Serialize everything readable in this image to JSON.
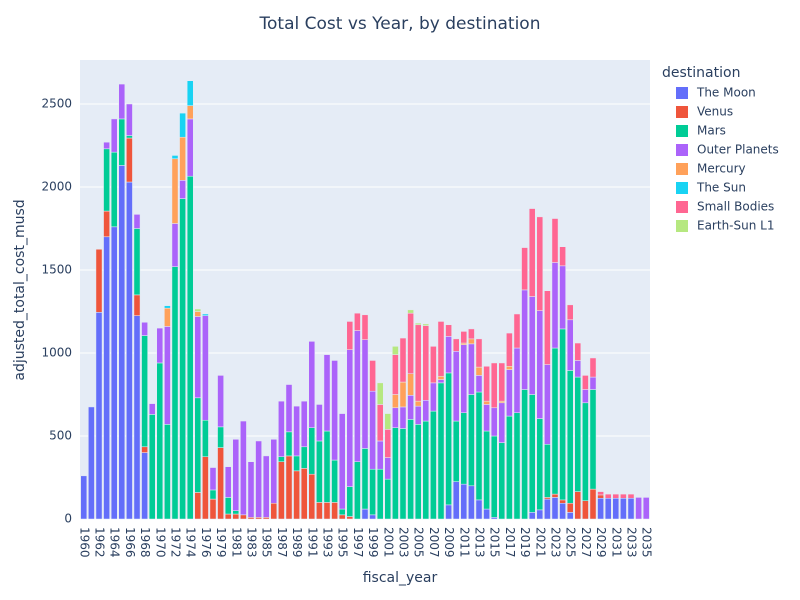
{
  "chart_data": {
    "type": "stacked_bar",
    "title": "Total Cost vs Year, by destination",
    "x_label": "fiscal_year",
    "y_label": "adjusted_total_cost_musd",
    "legend_title": "destination",
    "categories": [
      "1960",
      null,
      "1962",
      null,
      "1964",
      null,
      "1966",
      null,
      "1968",
      null,
      "1970",
      null,
      "1972",
      null,
      "1974",
      null,
      "1976",
      null,
      "1979",
      null,
      "1981",
      null,
      "1983",
      null,
      "1985",
      null,
      "1987",
      null,
      "1989",
      null,
      "1991",
      null,
      "1993",
      null,
      "1995",
      null,
      "1997",
      null,
      "1999",
      null,
      "2001",
      null,
      "2003",
      null,
      "2005",
      null,
      "2007",
      null,
      "2009",
      null,
      "2011",
      null,
      "2013",
      null,
      "2015",
      null,
      "2017",
      null,
      "2019",
      null,
      "2021",
      null,
      "2023",
      null,
      "2025",
      null,
      "2027",
      null,
      "2029",
      null,
      "2031",
      null,
      "2033",
      null,
      "2035"
    ],
    "ylim": [
      0,
      2765
    ],
    "yticks": [
      0,
      500,
      1000,
      1500,
      2000,
      2500
    ],
    "grid": true,
    "legend": "right",
    "series": [
      {
        "name": "The Moon",
        "color": "#636efa",
        "values": [
          260,
          675,
          1245,
          1700,
          1760,
          2130,
          2030,
          1225,
          400,
          0,
          0,
          0,
          0,
          0,
          0,
          0,
          0,
          0,
          0,
          0,
          0,
          0,
          0,
          0,
          0,
          0,
          0,
          0,
          0,
          0,
          0,
          0,
          0,
          0,
          0,
          0,
          0,
          60,
          25,
          0,
          0,
          0,
          0,
          0,
          0,
          0,
          0,
          0,
          85,
          225,
          210,
          200,
          115,
          60,
          10,
          0,
          0,
          0,
          0,
          40,
          55,
          120,
          130,
          95,
          40,
          0,
          0,
          0,
          125,
          125,
          125,
          125,
          125,
          0,
          0
        ]
      },
      {
        "name": "Venus",
        "color": "#EF553B",
        "values": [
          0,
          0,
          380,
          155,
          0,
          0,
          265,
          125,
          35,
          0,
          0,
          0,
          0,
          0,
          0,
          160,
          375,
          120,
          430,
          30,
          30,
          25,
          10,
          10,
          10,
          95,
          345,
          380,
          290,
          305,
          270,
          100,
          100,
          100,
          25,
          15,
          0,
          0,
          0,
          0,
          0,
          0,
          0,
          0,
          0,
          0,
          0,
          0,
          0,
          0,
          0,
          0,
          0,
          0,
          0,
          0,
          0,
          0,
          0,
          0,
          0,
          10,
          20,
          20,
          55,
          165,
          110,
          180,
          20,
          0,
          0,
          0,
          0,
          0,
          0
        ]
      },
      {
        "name": "Mars",
        "color": "#00cc96",
        "values": [
          0,
          0,
          0,
          375,
          450,
          280,
          15,
          400,
          670,
          630,
          940,
          570,
          1520,
          1930,
          2065,
          570,
          220,
          55,
          125,
          100,
          20,
          0,
          0,
          0,
          0,
          0,
          30,
          145,
          90,
          130,
          280,
          370,
          430,
          255,
          35,
          180,
          345,
          365,
          275,
          300,
          240,
          550,
          545,
          600,
          570,
          590,
          650,
          820,
          795,
          365,
          430,
          550,
          650,
          470,
          490,
          460,
          620,
          640,
          780,
          710,
          550,
          320,
          880,
          1030,
          800,
          690,
          590,
          600,
          0,
          0,
          0,
          0,
          0,
          0,
          0
        ]
      },
      {
        "name": "Outer Planets",
        "color": "#ab63fa",
        "values": [
          0,
          0,
          0,
          40,
          200,
          210,
          190,
          85,
          80,
          65,
          210,
          590,
          260,
          110,
          345,
          490,
          630,
          135,
          310,
          185,
          430,
          565,
          335,
          460,
          370,
          385,
          335,
          285,
          300,
          275,
          520,
          220,
          460,
          600,
          575,
          825,
          790,
          655,
          470,
          170,
          130,
          120,
          130,
          145,
          110,
          125,
          170,
          20,
          220,
          420,
          410,
          305,
          100,
          160,
          170,
          240,
          280,
          390,
          600,
          590,
          650,
          480,
          515,
          380,
          305,
          100,
          80,
          75,
          0,
          0,
          0,
          0,
          0,
          130,
          130
        ]
      },
      {
        "name": "Mercury",
        "color": "#FFA15A",
        "values": [
          0,
          0,
          0,
          0,
          0,
          0,
          0,
          0,
          0,
          0,
          0,
          110,
          390,
          260,
          80,
          30,
          0,
          0,
          0,
          0,
          0,
          0,
          0,
          0,
          0,
          0,
          0,
          0,
          0,
          0,
          0,
          0,
          0,
          0,
          0,
          0,
          0,
          0,
          0,
          0,
          0,
          80,
          150,
          130,
          30,
          0,
          0,
          20,
          0,
          0,
          10,
          30,
          50,
          20,
          0,
          10,
          20,
          0,
          0,
          0,
          0,
          0,
          0,
          0,
          0,
          0,
          0,
          0,
          0,
          0,
          0,
          0,
          0,
          0,
          0
        ]
      },
      {
        "name": "The Sun",
        "color": "#19d3f3",
        "values": [
          0,
          0,
          0,
          0,
          0,
          0,
          0,
          0,
          0,
          0,
          0,
          15,
          20,
          145,
          150,
          0,
          10,
          0,
          0,
          0,
          0,
          0,
          0,
          0,
          0,
          0,
          0,
          0,
          0,
          0,
          0,
          0,
          0,
          0,
          0,
          0,
          0,
          0,
          0,
          0,
          0,
          0,
          0,
          0,
          0,
          0,
          0,
          0,
          0,
          0,
          0,
          0,
          0,
          0,
          0,
          0,
          0,
          0,
          0,
          0,
          0,
          0,
          0,
          0,
          0,
          0,
          0,
          0,
          0,
          0,
          0,
          0,
          0,
          0,
          0
        ]
      },
      {
        "name": "Small Bodies",
        "color": "#FF6692",
        "values": [
          0,
          0,
          0,
          0,
          0,
          0,
          0,
          0,
          0,
          0,
          0,
          0,
          0,
          0,
          0,
          0,
          0,
          0,
          0,
          0,
          0,
          0,
          0,
          0,
          0,
          0,
          0,
          0,
          0,
          0,
          0,
          0,
          0,
          0,
          0,
          170,
          105,
          150,
          185,
          220,
          170,
          240,
          265,
          365,
          460,
          450,
          220,
          330,
          70,
          75,
          70,
          60,
          170,
          210,
          270,
          230,
          200,
          205,
          255,
          530,
          565,
          445,
          265,
          115,
          90,
          105,
          85,
          115,
          20,
          25,
          25,
          25,
          25,
          0,
          0
        ]
      },
      {
        "name": "Earth-Sun L1",
        "color": "#B6E880",
        "values": [
          0,
          0,
          0,
          0,
          0,
          0,
          0,
          0,
          0,
          0,
          0,
          0,
          0,
          0,
          0,
          15,
          0,
          0,
          0,
          0,
          0,
          0,
          0,
          0,
          0,
          0,
          0,
          0,
          0,
          0,
          0,
          0,
          0,
          0,
          0,
          0,
          0,
          0,
          0,
          130,
          95,
          50,
          0,
          20,
          10,
          10,
          0,
          0,
          0,
          0,
          0,
          0,
          0,
          0,
          0,
          0,
          0,
          0,
          0,
          0,
          0,
          0,
          0,
          0,
          0,
          0,
          0,
          0,
          0,
          0,
          0,
          0,
          0,
          0,
          0
        ]
      }
    ]
  }
}
